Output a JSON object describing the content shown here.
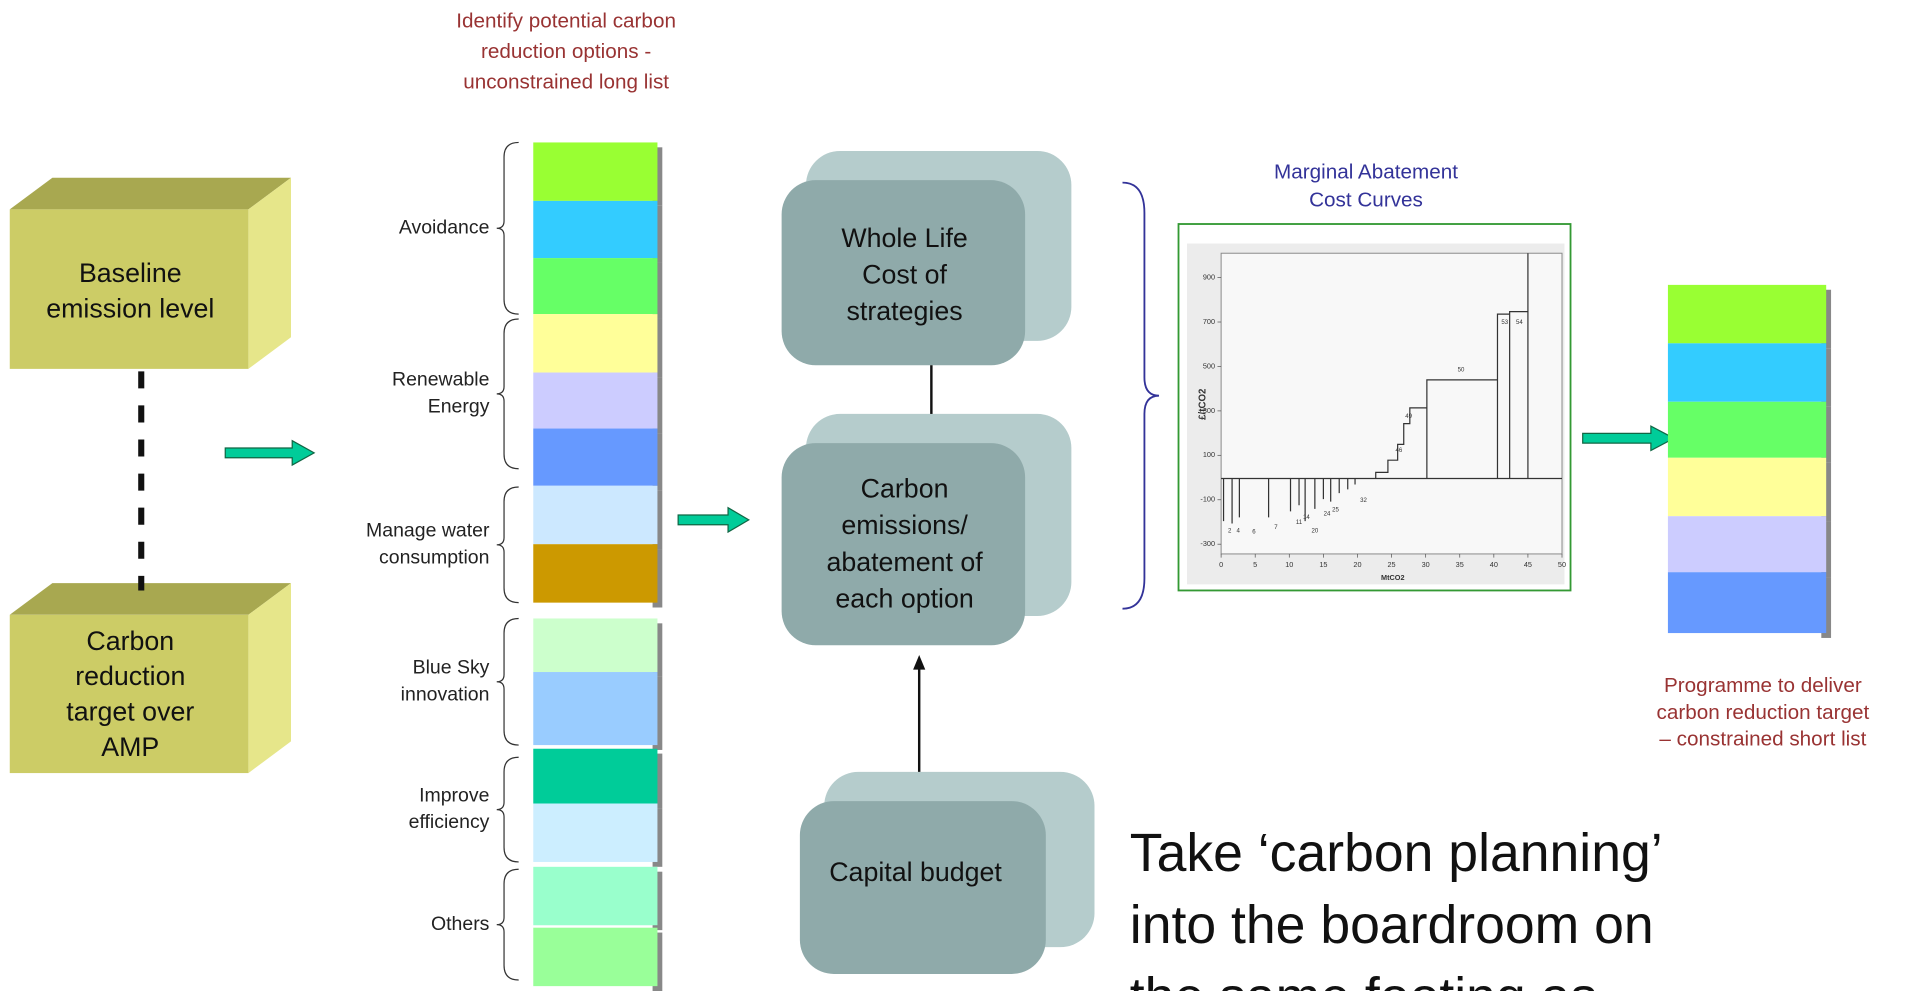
{
  "long_list_title": [
    "Identify potential carbon",
    "reduction options -",
    "unconstrained long list"
  ],
  "baseline_box": [
    "Baseline",
    "emission level"
  ],
  "target_box": [
    "Carbon",
    "reduction",
    "target over",
    "AMP"
  ],
  "groups": [
    [
      "Avoidance"
    ],
    [
      "Renewable",
      "Energy"
    ],
    [
      "Manage water",
      "consumption"
    ],
    [
      "Blue Sky",
      "innovation"
    ],
    [
      "Improve",
      "efficiency"
    ],
    [
      "Others"
    ]
  ],
  "whole_life_box": [
    "Whole Life",
    "Cost of",
    "strategies"
  ],
  "emissions_box": [
    "Carbon",
    "emissions/",
    "abatement of",
    "each option"
  ],
  "capital_box": [
    "Capital budget"
  ],
  "mac_title": [
    "Marginal Abatement",
    "Cost Curves"
  ],
  "mac_chart": {
    "y_label": "£/tCO2",
    "x_label": "MtCO2",
    "yticks": [
      900,
      700,
      500,
      300,
      100,
      -100,
      -300
    ],
    "xticks": [
      0,
      5,
      10,
      15,
      20,
      25,
      30,
      35,
      40,
      45,
      50
    ],
    "step_labels": [
      "2",
      "4",
      "6",
      "7",
      "11",
      "14",
      "20",
      "24",
      "25",
      "32",
      "46",
      "49",
      "50",
      "53",
      "54"
    ]
  },
  "short_list_title": [
    "Programme to deliver",
    "carbon reduction target",
    "– constrained short list"
  ],
  "footer": [
    "Take ‘carbon planning’",
    "into the boardroom on",
    "the same footing as"
  ]
}
